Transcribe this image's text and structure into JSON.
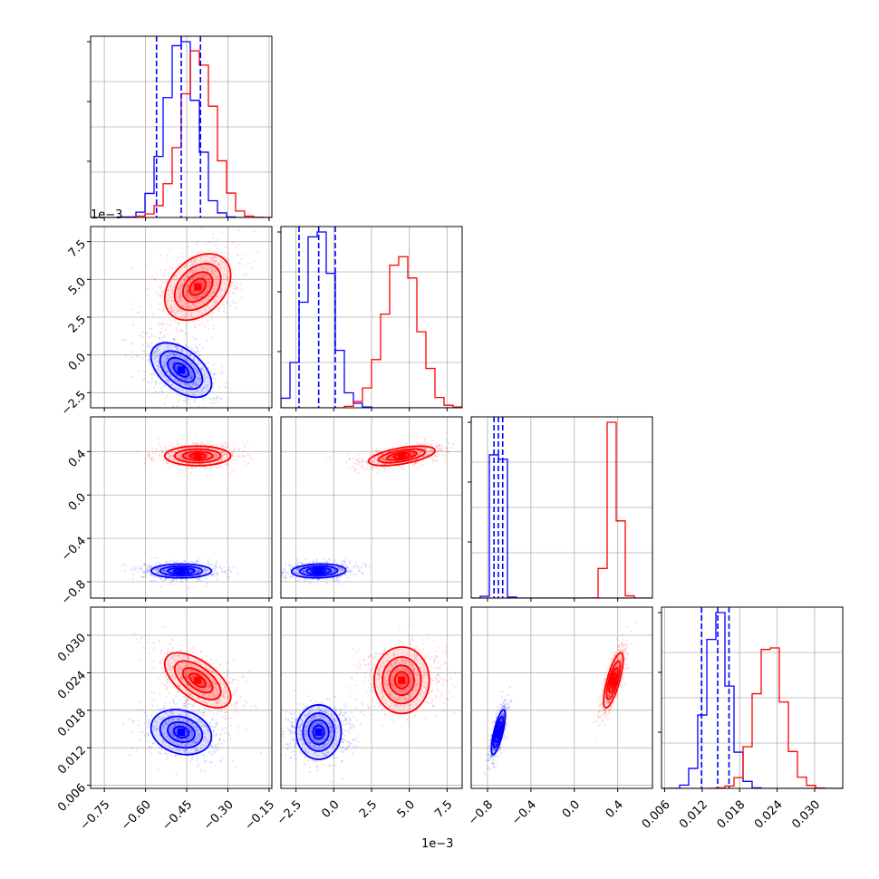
{
  "chart_data": {
    "type": "corner",
    "description_free": true,
    "grid": true,
    "colors": {
      "blue": "#0000ff",
      "red": "#ff0000",
      "grid": "#b0b0b0",
      "frame": "#000000"
    },
    "series": [
      {
        "color": "blue",
        "means": [
          -0.47,
          -0.001,
          -0.7,
          0.0145
        ],
        "stds": [
          0.055,
          0.0009,
          0.032,
          0.0018
        ],
        "quantile_lines": true
      },
      {
        "color": "red",
        "means": [
          -0.41,
          0.0045,
          0.36,
          0.0228
        ],
        "stds": [
          0.06,
          0.0011,
          0.045,
          0.0022
        ],
        "quantile_lines": false
      }
    ],
    "params": [
      {
        "range": [
          -0.8,
          -0.14
        ],
        "ticks": [
          -0.75,
          -0.6,
          -0.45,
          -0.3,
          -0.15
        ],
        "tick_labels": [
          "−0.75",
          "−0.60",
          "−0.45",
          "−0.30",
          "−0.15"
        ],
        "offset": ""
      },
      {
        "range": [
          -0.0035,
          0.0085
        ],
        "ticks": [
          -0.0025,
          0.0,
          0.0025,
          0.005,
          0.0075
        ],
        "tick_labels": [
          "−2.5",
          "0.0",
          "2.5",
          "5.0",
          "7.5"
        ],
        "offset": "1e−3"
      },
      {
        "range": [
          -0.95,
          0.72
        ],
        "ticks": [
          -0.8,
          -0.4,
          0.0,
          0.4
        ],
        "tick_labels": [
          "−0.8",
          "−0.4",
          "0.0",
          "0.4"
        ],
        "offset": ""
      },
      {
        "range": [
          0.0055,
          0.0345
        ],
        "ticks": [
          0.006,
          0.012,
          0.018,
          0.024,
          0.03
        ],
        "tick_labels": [
          "0.006",
          "0.012",
          "0.018",
          "0.024",
          "0.030"
        ],
        "offset": ""
      }
    ],
    "diag_quantiles_blue": [
      [
        -0.56,
        -0.47,
        -0.4
      ],
      [
        -0.0023,
        -0.001,
        0.0001
      ],
      [
        -0.74,
        -0.7,
        -0.66
      ],
      [
        0.0119,
        0.0145,
        0.0163
      ]
    ]
  },
  "offset_labels": {
    "y_row1": "1e−3",
    "x_col1": "1e−3"
  }
}
